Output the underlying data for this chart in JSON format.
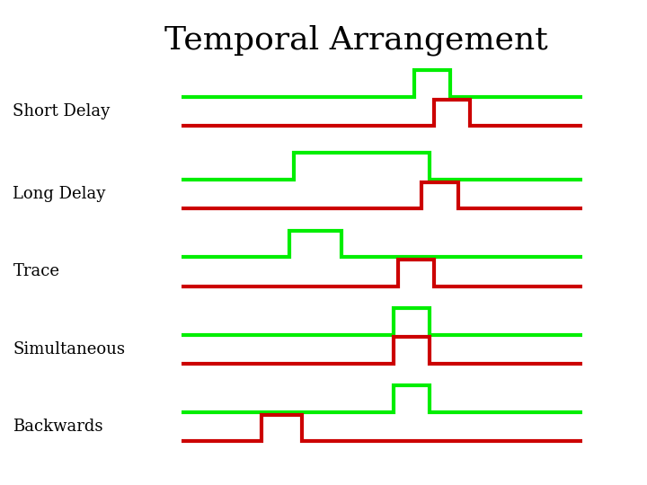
{
  "title": "Temporal Arrangement",
  "title_fontsize": 26,
  "background_color": "#ffffff",
  "green_color": "#00ee00",
  "red_color": "#cc0000",
  "line_width": 3.0,
  "label_fontsize": 13,
  "rows": [
    {
      "name": "Short Delay",
      "green_x": [
        0.0,
        0.58,
        0.58,
        0.67,
        0.67,
        1.0
      ],
      "green_y": [
        0,
        0,
        1,
        1,
        0,
        0
      ],
      "red_x": [
        0.0,
        0.63,
        0.63,
        0.72,
        0.72,
        1.0
      ],
      "red_y": [
        0,
        0,
        1,
        1,
        0,
        0
      ]
    },
    {
      "name": "Long Delay",
      "green_x": [
        0.0,
        0.28,
        0.28,
        0.62,
        0.62,
        1.0
      ],
      "green_y": [
        0,
        0,
        1,
        1,
        0,
        0
      ],
      "red_x": [
        0.0,
        0.6,
        0.6,
        0.69,
        0.69,
        1.0
      ],
      "red_y": [
        0,
        0,
        1,
        1,
        0,
        0
      ]
    },
    {
      "name": "Trace",
      "green_x": [
        0.0,
        0.27,
        0.27,
        0.4,
        0.4,
        1.0
      ],
      "green_y": [
        0,
        0,
        1,
        1,
        0,
        0
      ],
      "red_x": [
        0.0,
        0.54,
        0.54,
        0.63,
        0.63,
        1.0
      ],
      "red_y": [
        0,
        0,
        1,
        1,
        0,
        0
      ]
    },
    {
      "name": "Simultaneous",
      "green_x": [
        0.0,
        0.53,
        0.53,
        0.62,
        0.62,
        1.0
      ],
      "green_y": [
        0,
        0,
        1,
        1,
        0,
        0
      ],
      "red_x": [
        0.0,
        0.53,
        0.53,
        0.62,
        0.62,
        1.0
      ],
      "red_y": [
        0,
        0,
        1,
        1,
        0,
        0
      ]
    },
    {
      "name": "Backwards",
      "green_x": [
        0.0,
        0.53,
        0.53,
        0.62,
        0.62,
        1.0
      ],
      "green_y": [
        0,
        0,
        1,
        1,
        0,
        0
      ],
      "red_x": [
        0.0,
        0.2,
        0.2,
        0.3,
        0.3,
        1.0
      ],
      "red_y": [
        0,
        0,
        1,
        1,
        0,
        0
      ]
    }
  ]
}
